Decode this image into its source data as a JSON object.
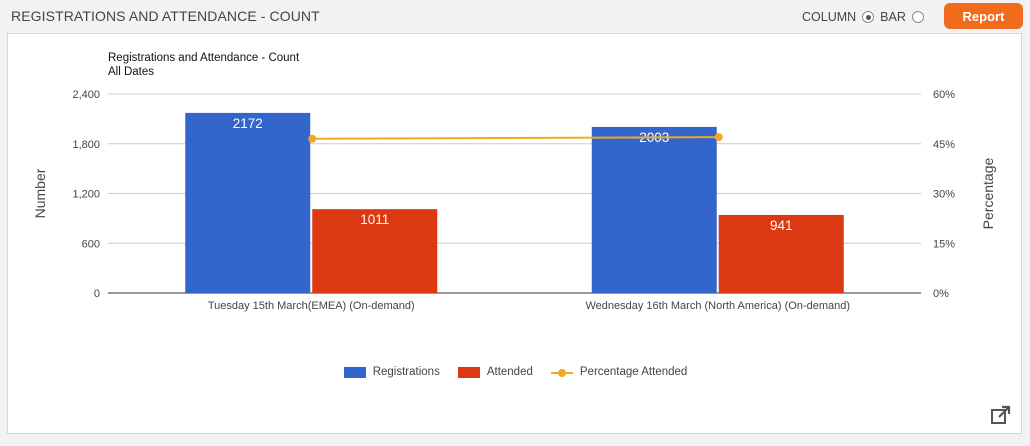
{
  "header": {
    "title": "REGISTRATIONS AND ATTENDANCE - COUNT",
    "column_label": "COLUMN",
    "bar_label": "BAR",
    "selected_view": "column",
    "report_button": "Report",
    "report_color": "#f26a1b"
  },
  "chart_data": {
    "type": "bar",
    "title": "Registrations and Attendance - Count",
    "subtitle": "All Dates",
    "categories": [
      "Tuesday 15th March(EMEA) (On-demand)",
      "Wednesday 16th March (North America) (On-demand)"
    ],
    "series": [
      {
        "name": "Registrations",
        "type": "bar",
        "axis": "left",
        "color": "#3366cc",
        "values": [
          2172,
          2003
        ],
        "labels": [
          "2172",
          "2003"
        ]
      },
      {
        "name": "Attended",
        "type": "bar",
        "axis": "left",
        "color": "#dc3912",
        "values": [
          1011,
          941
        ],
        "labels": [
          "1011",
          "941"
        ]
      },
      {
        "name": "Percentage Attended",
        "type": "line",
        "axis": "right",
        "color": "#f5a623",
        "values": [
          46.5,
          47.0
        ]
      }
    ],
    "ylabel": "Number",
    "y2label": "Percentage",
    "ylim": [
      0,
      2400
    ],
    "y2lim": [
      0,
      60
    ],
    "yticks": [
      "0",
      "600",
      "1,200",
      "1,800",
      "2,400"
    ],
    "y2ticks": [
      "0%",
      "15%",
      "30%",
      "45%",
      "60%"
    ],
    "grid": true,
    "legend_position": "bottom"
  },
  "icons": {
    "popout": "external-link-icon"
  }
}
